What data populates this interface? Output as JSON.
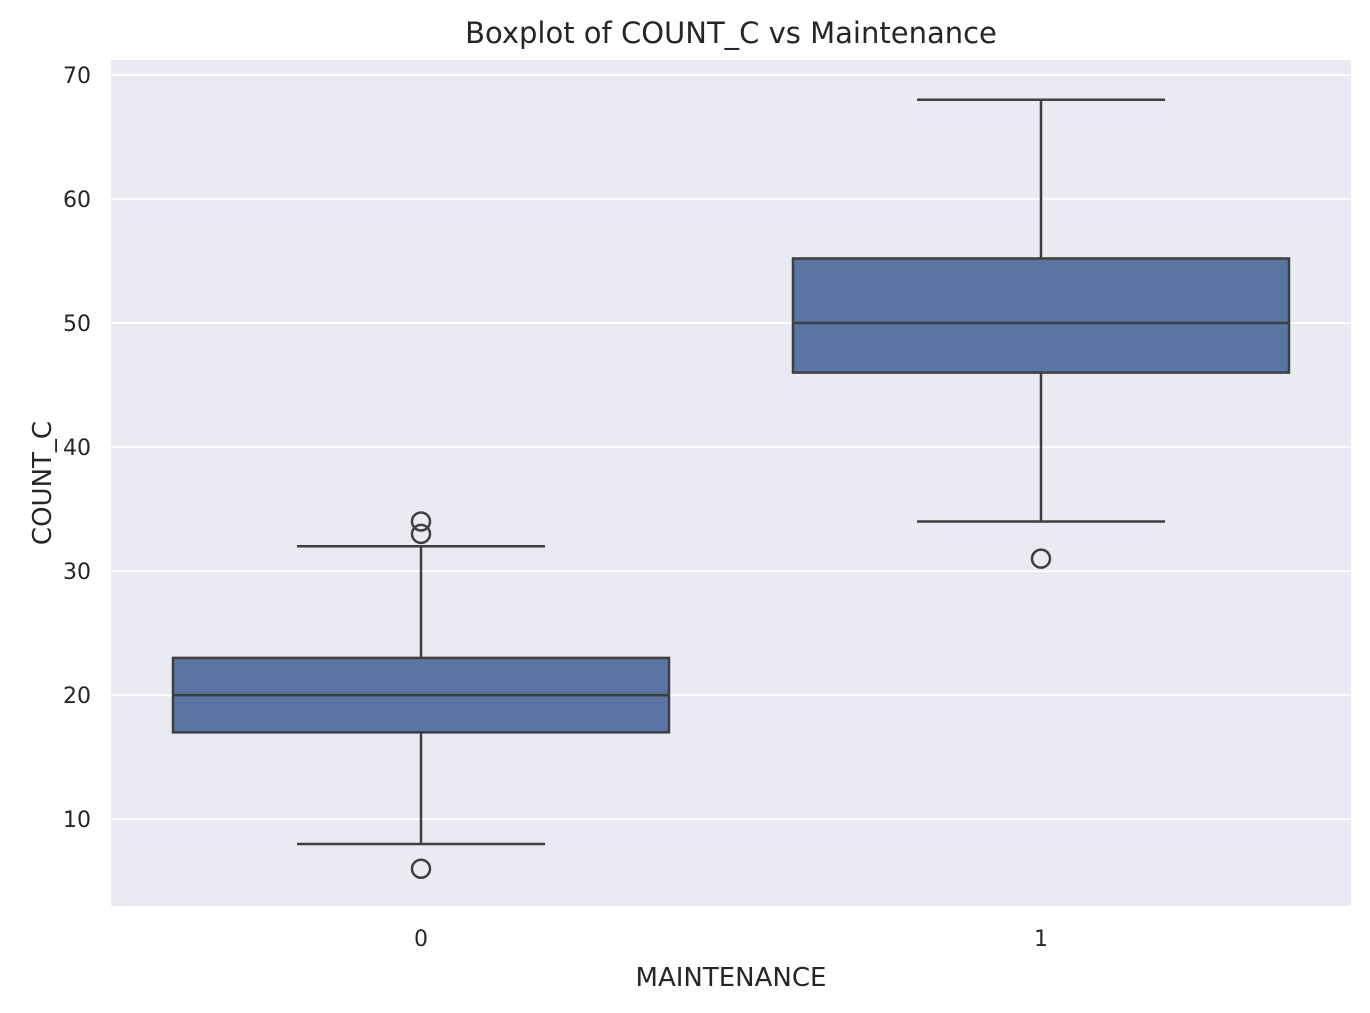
{
  "chart_data": {
    "type": "boxplot",
    "title": "Boxplot of COUNT_C vs Maintenance",
    "xlabel": "MAINTENANCE",
    "ylabel": "COUNT_C",
    "categories": [
      "0",
      "1"
    ],
    "yticks": [
      10,
      20,
      30,
      40,
      50,
      60,
      70
    ],
    "ylim": [
      3,
      71.2
    ],
    "grid": true,
    "boxes": [
      {
        "category": "0",
        "whisker_low": 8,
        "q1": 17,
        "median": 20,
        "q3": 23,
        "whisker_high": 32,
        "outliers": [
          6,
          33,
          34
        ]
      },
      {
        "category": "1",
        "whisker_low": 34,
        "q1": 46,
        "median": 50,
        "q3": 55.2,
        "whisker_high": 68,
        "outliers": [
          31
        ]
      }
    ]
  },
  "colors": {
    "background": "#eaeaf2",
    "grid": "#ffffff",
    "box_fill": "#5975a4",
    "line": "#3f3f3f"
  }
}
